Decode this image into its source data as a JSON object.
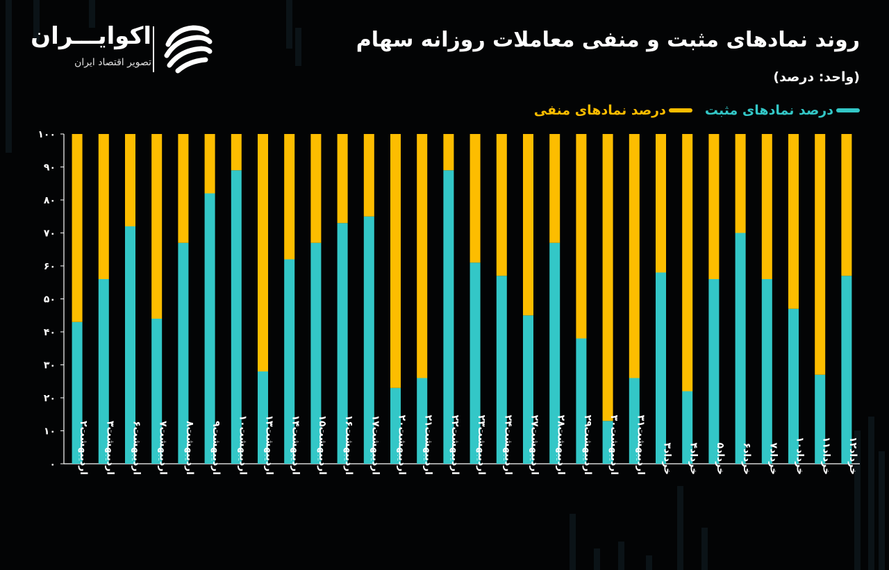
{
  "header": {
    "title": "روند نمادهای مثبت و منفی معاملات روزانه سهام",
    "unit": "(واحد: درصد)"
  },
  "logo": {
    "name": "اکوایـــران",
    "subtitle": "تصویر اقتصاد ایران",
    "icon": "swirl-logo-icon"
  },
  "colors": {
    "positive": "#33c7c7",
    "negative": "#fdbd00",
    "background": "#030405",
    "axis": "#ffffff"
  },
  "chart_data": {
    "type": "bar",
    "stacked": true,
    "legend_position": "top-right",
    "grid": false,
    "ylim": [
      0,
      100
    ],
    "yticks": [
      "۰",
      "۱۰",
      "۲۰",
      "۳۰",
      "۴۰",
      "۵۰",
      "۶۰",
      "۷۰",
      "۸۰",
      "۹۰",
      "۱۰۰"
    ],
    "categories": [
      "اردیبهشت۲",
      "اردیبهشت۳",
      "اردیبهشت۶",
      "اردیبهشت۷",
      "اردیبهشت۸",
      "اردیبهشت۹",
      "اردیبهشت۱۰",
      "اردیبهشت۱۳",
      "اردیبهشت۱۴",
      "اردیبهشت۱۵",
      "اردیبهشت۱۶",
      "اردیبهشت۱۷",
      "اردیبهشت۲۰",
      "اردیبهشت۲۱",
      "اردیبهشت۲۲",
      "اردیبهشت۲۳",
      "اردیبهشت۲۴",
      "اردیبهشت۲۷",
      "اردیبهشت۲۸",
      "اردیبهشت۲۹",
      "اردیبهشت۳۰",
      "اردیبهشت۳۱",
      "خرداد۳",
      "خرداد۴",
      "خرداد۵",
      "خرداد۶",
      "خرداد۷",
      "خرداد۱۰",
      "خرداد۱۱",
      "خرداد۱۲"
    ],
    "series": [
      {
        "name": "درصد نمادهای مثبت",
        "values": [
          43,
          56,
          72,
          44,
          67,
          82,
          89,
          28,
          62,
          67,
          73,
          75,
          23,
          26,
          89,
          61,
          57,
          45,
          67,
          38,
          13,
          26,
          58,
          22,
          56,
          70,
          56,
          47,
          27,
          57
        ]
      },
      {
        "name": "درصد نمادهای منفی",
        "values": [
          57,
          44,
          28,
          56,
          33,
          18,
          11,
          72,
          38,
          33,
          27,
          25,
          77,
          74,
          11,
          39,
          43,
          55,
          33,
          62,
          87,
          74,
          42,
          78,
          44,
          30,
          44,
          53,
          73,
          43
        ]
      }
    ]
  }
}
